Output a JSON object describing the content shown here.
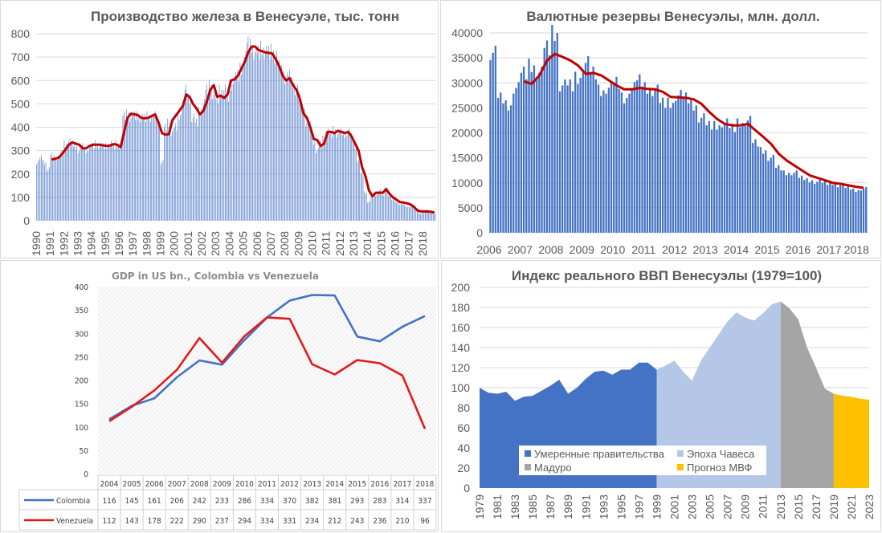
{
  "chart_data": [
    {
      "type": "bar",
      "title": "Производство железа в Венесуэле, тыс. тонн",
      "ylim": [
        0,
        800
      ],
      "yticks": [
        0,
        100,
        200,
        300,
        400,
        500,
        600,
        700,
        800
      ],
      "xtick_labels": [
        "1990",
        "1991",
        "1992",
        "1993",
        "1994",
        "1995",
        "1996",
        "1997",
        "1998",
        "1999",
        "2000",
        "2001",
        "2002",
        "2003",
        "2004",
        "2005",
        "2006",
        "2007",
        "2008",
        "2009",
        "2010",
        "2011",
        "2012",
        "2013",
        "2014",
        "2015",
        "2016",
        "2017",
        "2018"
      ],
      "frequency": "quarterly (approx. of monthly bars)",
      "bars_start": "1990",
      "bars": [
        250,
        270,
        250,
        220,
        280,
        270,
        270,
        290,
        330,
        340,
        330,
        320,
        300,
        320,
        300,
        310,
        320,
        330,
        320,
        320,
        320,
        330,
        320,
        330,
        320,
        450,
        460,
        440,
        450,
        450,
        440,
        440,
        450,
        440,
        450,
        420,
        250,
        400,
        420,
        380,
        400,
        450,
        480,
        560,
        520,
        440,
        420,
        470,
        500,
        560,
        580,
        540,
        520,
        560,
        560,
        530,
        580,
        610,
        620,
        650,
        700,
        760,
        750,
        720,
        720,
        740,
        720,
        720,
        730,
        700,
        660,
        640,
        610,
        620,
        590,
        560,
        520,
        480,
        420,
        410,
        340,
        300,
        330,
        350,
        380,
        370,
        390,
        370,
        380,
        370,
        380,
        360,
        320,
        260,
        200,
        120,
        80,
        100,
        110,
        130,
        110,
        140,
        110,
        90,
        80,
        70,
        70,
        60,
        60,
        60,
        50,
        30,
        40,
        45,
        40,
        30
      ],
      "line_start": "1991",
      "moving_average": [
        262,
        265,
        270,
        285,
        305,
        325,
        335,
        330,
        325,
        310,
        310,
        320,
        325,
        325,
        325,
        322,
        320,
        322,
        328,
        325,
        315,
        380,
        440,
        458,
        455,
        452,
        440,
        438,
        440,
        448,
        455,
        420,
        375,
        368,
        370,
        430,
        450,
        470,
        490,
        540,
        530,
        500,
        480,
        455,
        470,
        510,
        560,
        580,
        530,
        535,
        525,
        540,
        600,
        605,
        620,
        650,
        680,
        720,
        745,
        745,
        730,
        725,
        720,
        718,
        715,
        690,
        660,
        620,
        600,
        610,
        580,
        560,
        520,
        460,
        440,
        400,
        350,
        345,
        320,
        330,
        380,
        380,
        375,
        385,
        380,
        375,
        380,
        360,
        330,
        300,
        230,
        190,
        130,
        105,
        120,
        120,
        120,
        135,
        115,
        100,
        90,
        80,
        78,
        75,
        70,
        60,
        45,
        40,
        40,
        40,
        38,
        35
      ],
      "colors": {
        "bars": "#4472c4",
        "line": "#c00000"
      },
      "grid": true
    },
    {
      "type": "bar",
      "title": "Валютные резервы Венесуэлы, млн. долл.",
      "ylim": [
        0,
        40000
      ],
      "yticks": [
        0,
        5000,
        10000,
        15000,
        20000,
        25000,
        30000,
        35000,
        40000
      ],
      "xtick_labels": [
        "2006",
        "2007",
        "2008",
        "2009",
        "2010",
        "2011",
        "2012",
        "2013",
        "2014",
        "2015",
        "2016",
        "2017",
        "2018"
      ],
      "frequency": "quarterly (approx. of monthly bars)",
      "bars_start": "2006",
      "bars": [
        36000,
        27000,
        25500,
        29000,
        32000,
        33500,
        32000,
        37000,
        40000,
        29500,
        29500,
        31000,
        34000,
        32000,
        28500,
        29000,
        30000,
        27000,
        29000,
        30500,
        29000,
        28500,
        26000,
        26000,
        27500,
        27000,
        25500,
        23000,
        21500,
        21500,
        22000,
        21000,
        22000,
        22500,
        18000,
        16500,
        15000,
        13000,
        12000,
        12000,
        11000,
        10500,
        10200,
        10000,
        10000,
        9500,
        9000,
        8500,
        8800
      ],
      "line_start": "2007",
      "moving_average": [
        30300,
        29800,
        31500,
        34500,
        35800,
        35200,
        34500,
        33500,
        31800,
        32000,
        31500,
        30500,
        29500,
        28700,
        28700,
        29000,
        28800,
        28700,
        28200,
        27200,
        27100,
        27000,
        26700,
        25800,
        24200,
        22800,
        21800,
        21500,
        21500,
        21800,
        20500,
        19200,
        17800,
        15800,
        14500,
        13500,
        12500,
        11500,
        11000,
        10500,
        10000,
        9800,
        9500,
        9200,
        9000
      ],
      "colors": {
        "bars": "#4472c4",
        "line": "#c00000"
      },
      "grid": true
    },
    {
      "type": "line",
      "title": "GDP in US bn., Colombia vs Venezuela",
      "ylim": [
        0,
        400
      ],
      "yticks": [
        0,
        50,
        100,
        150,
        200,
        250,
        300,
        350,
        400
      ],
      "categories": [
        "2004",
        "2005",
        "2006",
        "2007",
        "2008",
        "2009",
        "2010",
        "2011",
        "2012",
        "2013",
        "2014",
        "2015",
        "2016",
        "2017",
        "2018"
      ],
      "series": [
        {
          "name": "Colombia",
          "color": "#4472c4",
          "values": [
            116,
            145,
            161,
            206,
            242,
            233,
            286,
            334,
            370,
            382,
            381,
            293,
            283,
            314,
            337
          ]
        },
        {
          "name": "Venezuela",
          "color": "#e31a1c",
          "values": [
            112,
            143,
            178,
            222,
            290,
            237,
            294,
            334,
            331,
            234,
            212,
            243,
            236,
            210,
            96
          ]
        }
      ],
      "data_table": true,
      "grid": false
    },
    {
      "type": "area",
      "title": "Индекс реального ВВП Венесуэлы (1979=100)",
      "ylim": [
        0,
        200
      ],
      "yticks": [
        0,
        20,
        40,
        60,
        80,
        100,
        120,
        140,
        160,
        180,
        200
      ],
      "xtick_labels": [
        "1979",
        "1981",
        "1983",
        "1985",
        "1987",
        "1989",
        "1991",
        "1993",
        "1995",
        "1997",
        "1999",
        "2001",
        "2003",
        "2005",
        "2007",
        "2009",
        "2011",
        "2013",
        "2015",
        "2017",
        "2019",
        "2021",
        "2023"
      ],
      "x_start": 1979,
      "values": [
        100,
        95,
        94,
        96,
        87,
        91,
        92,
        97,
        102,
        108,
        94,
        100,
        109,
        116,
        117,
        113,
        118,
        118,
        125,
        125,
        118,
        122,
        127,
        116,
        107,
        127,
        140,
        153,
        166,
        175,
        170,
        167,
        174,
        183,
        186,
        179,
        168,
        140,
        120,
        99,
        94,
        92,
        91,
        89,
        88
      ],
      "series": [
        {
          "name": "Умеренные правительства",
          "from": 1979,
          "to": 1999,
          "color": "#4472c4"
        },
        {
          "name": "Эпоха Чавеса",
          "from": 1999,
          "to": 2013,
          "color": "#b4c7e7"
        },
        {
          "name": "Мадуро",
          "from": 2013,
          "to": 2019,
          "color": "#a5a5a5"
        },
        {
          "name": "Прогноз МВФ",
          "from": 2019,
          "to": 2023,
          "color": "#ffc000"
        }
      ],
      "legend": "bottom-center inside",
      "grid": true
    }
  ]
}
